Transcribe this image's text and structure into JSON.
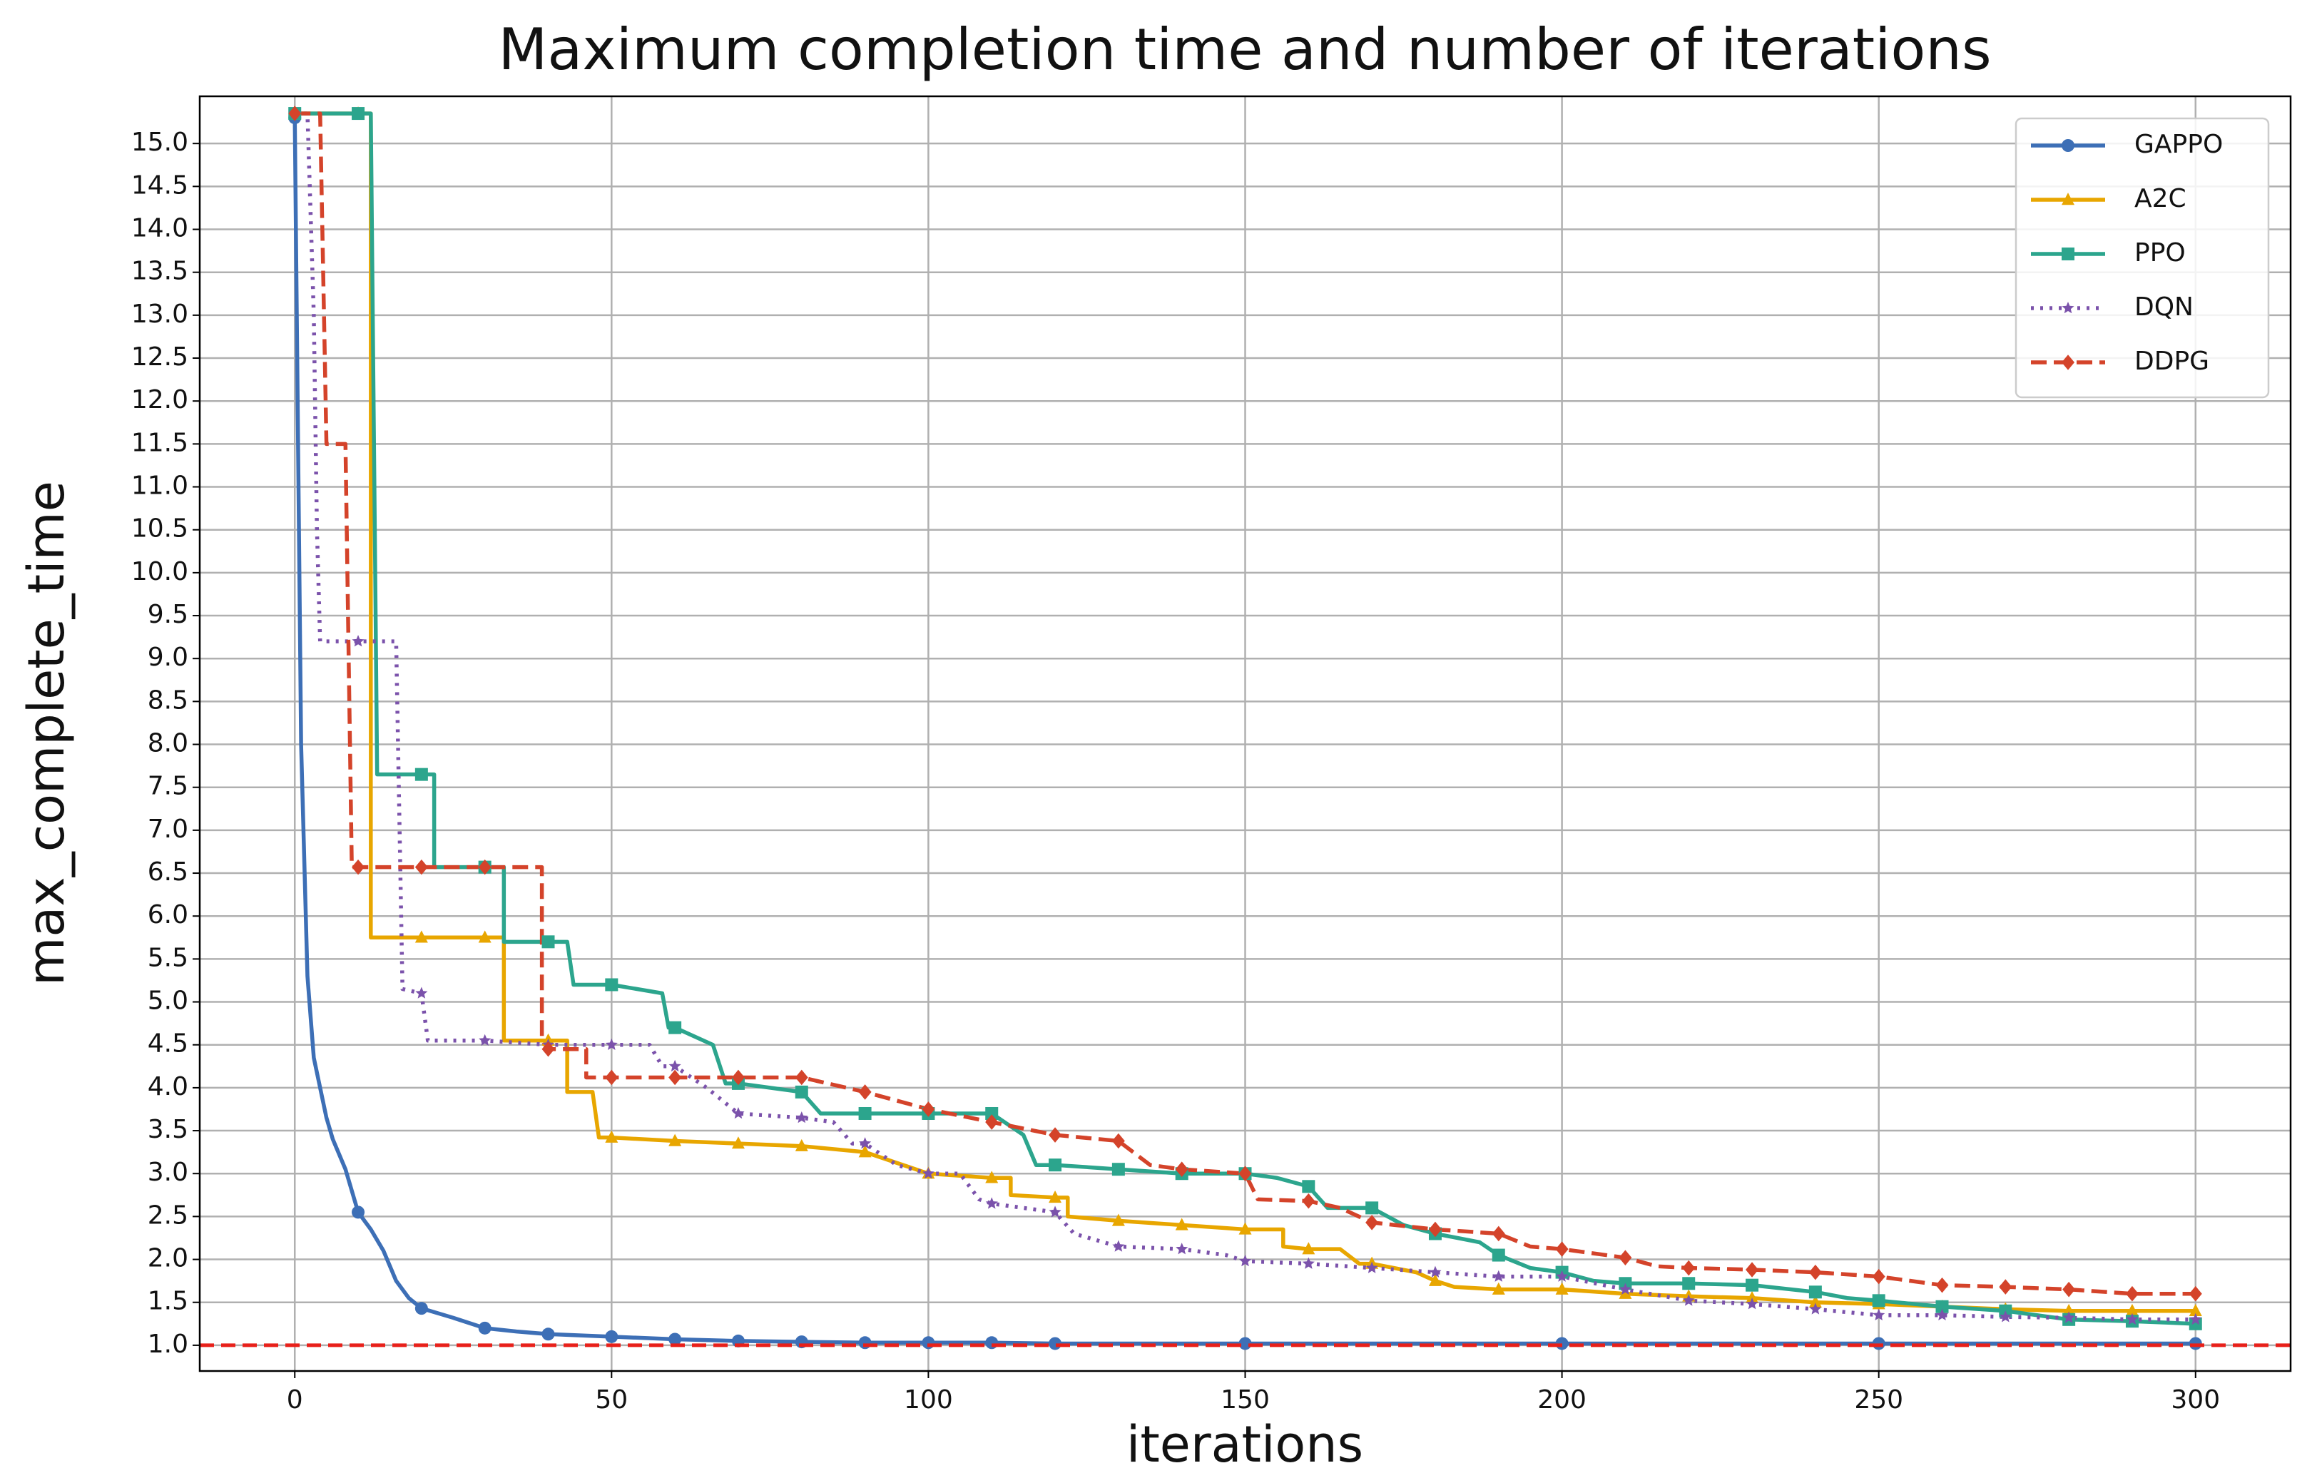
{
  "chart_data": {
    "type": "line",
    "title": "Maximum completion time and number of iterations",
    "x_label": "iterations",
    "y_label": "max_complete_time",
    "xlim": [
      -15,
      315
    ],
    "ylim": [
      0.7,
      15.55
    ],
    "xticks": [
      0,
      50,
      100,
      150,
      200,
      250,
      300
    ],
    "yticks": [
      {
        "value": 1,
        "label": "1.0"
      },
      1.5,
      {
        "value": 2,
        "label": "2.0"
      },
      2.5,
      {
        "value": 3,
        "label": "3.0"
      },
      3.5,
      {
        "value": 4,
        "label": "4.0"
      },
      4.5,
      {
        "value": 5,
        "label": "5.0"
      },
      5.5,
      {
        "value": 6,
        "label": "6.0"
      },
      6.5,
      {
        "value": 7,
        "label": "7.0"
      },
      7.5,
      {
        "value": 8,
        "label": "8.0"
      },
      8.5,
      {
        "value": 9,
        "label": "9.0"
      },
      9.5,
      {
        "value": 10,
        "label": "10.0"
      },
      10.5,
      {
        "value": 11,
        "label": "11.0"
      },
      11.5,
      {
        "value": 12,
        "label": "12.0"
      },
      12.5,
      {
        "value": 13,
        "label": "13.0"
      },
      13.5,
      {
        "value": 14,
        "label": "14.0"
      },
      14.5,
      {
        "value": 15,
        "label": "15.0"
      }
    ],
    "grid": true,
    "legend": "upper right",
    "marker_every": 10,
    "reference_line": {
      "value": 1,
      "color": "#e8201a"
    },
    "series": [
      {
        "name": "GAPPO",
        "color": "#3d6fb6",
        "marker": "circle",
        "dash": "solid",
        "x": [
          0,
          1,
          2,
          3,
          4,
          5,
          6,
          8,
          10,
          12,
          14,
          16,
          18,
          20,
          25,
          30,
          35,
          40,
          50,
          60,
          70,
          80,
          90,
          100,
          110,
          120,
          150,
          200,
          250,
          300
        ],
        "values": [
          15.3,
          8,
          5.3,
          4.35,
          4.0,
          3.65,
          3.4,
          3.05,
          2.55,
          2.35,
          2.1,
          1.75,
          1.55,
          1.43,
          1.32,
          1.2,
          1.16,
          1.13,
          1.1,
          1.07,
          1.05,
          1.04,
          1.03,
          1.03,
          1.03,
          1.02,
          1.02,
          1.02,
          1.02,
          1.02
        ]
      },
      {
        "name": "A2C",
        "color": "#e8a600",
        "marker": "triangle",
        "dash": "solid",
        "x": [
          0,
          10,
          12,
          12,
          20,
          30,
          33,
          33,
          40,
          43,
          43,
          47,
          48,
          50,
          60,
          70,
          80,
          90,
          100,
          110,
          113,
          113,
          120,
          122,
          122,
          130,
          140,
          150,
          156,
          156,
          160,
          165,
          168,
          170,
          177,
          180,
          183,
          190,
          200,
          210,
          220,
          230,
          240,
          250,
          260,
          270,
          280,
          290,
          300
        ],
        "values": [
          15.35,
          15.35,
          15.35,
          5.75,
          5.75,
          5.75,
          5.75,
          4.55,
          4.55,
          4.55,
          3.95,
          3.95,
          3.42,
          3.42,
          3.38,
          3.35,
          3.32,
          3.25,
          3.0,
          2.95,
          2.95,
          2.75,
          2.72,
          2.72,
          2.5,
          2.45,
          2.4,
          2.35,
          2.35,
          2.15,
          2.12,
          2.12,
          1.95,
          1.95,
          1.85,
          1.75,
          1.68,
          1.65,
          1.65,
          1.6,
          1.57,
          1.55,
          1.5,
          1.48,
          1.45,
          1.42,
          1.4,
          1.4,
          1.4
        ]
      },
      {
        "name": "PPO",
        "color": "#2ca58d",
        "marker": "square",
        "dash": "solid",
        "x": [
          0,
          10,
          12,
          13,
          20,
          22,
          22,
          30,
          33,
          33,
          40,
          43,
          44,
          50,
          58,
          59,
          60,
          66,
          68,
          70,
          80,
          83,
          90,
          100,
          110,
          115,
          117,
          120,
          130,
          140,
          150,
          155,
          160,
          163,
          170,
          175,
          180,
          187,
          190,
          195,
          200,
          205,
          210,
          220,
          230,
          240,
          245,
          250,
          260,
          270,
          280,
          290,
          300
        ],
        "values": [
          15.35,
          15.35,
          15.35,
          7.65,
          7.65,
          7.65,
          6.57,
          6.57,
          6.57,
          5.7,
          5.7,
          5.7,
          5.2,
          5.2,
          5.1,
          4.7,
          4.7,
          4.5,
          4.05,
          4.05,
          3.95,
          3.7,
          3.7,
          3.7,
          3.7,
          3.45,
          3.1,
          3.1,
          3.05,
          3.0,
          3.0,
          2.95,
          2.85,
          2.6,
          2.6,
          2.4,
          2.3,
          2.2,
          2.05,
          1.9,
          1.85,
          1.75,
          1.72,
          1.72,
          1.7,
          1.62,
          1.55,
          1.52,
          1.45,
          1.4,
          1.3,
          1.28,
          1.25
        ]
      },
      {
        "name": "DQN",
        "color": "#7b52ab",
        "marker": "star",
        "dash": "dotted",
        "x": [
          0,
          2,
          3,
          3.5,
          4,
          10,
          16,
          17,
          20,
          21,
          30,
          40,
          50,
          56,
          58,
          60,
          65,
          70,
          80,
          85,
          88,
          90,
          95,
          100,
          105,
          108,
          110,
          120,
          123,
          130,
          140,
          147,
          150,
          160,
          170,
          180,
          190,
          200,
          210,
          220,
          230,
          240,
          250,
          260,
          270,
          280,
          290,
          300
        ],
        "values": [
          15.35,
          15.35,
          13,
          10.5,
          9.2,
          9.2,
          9.2,
          5.15,
          5.1,
          4.55,
          4.55,
          4.5,
          4.5,
          4.5,
          4.25,
          4.25,
          4.0,
          3.7,
          3.65,
          3.6,
          3.35,
          3.35,
          3.1,
          3.0,
          3.0,
          2.7,
          2.65,
          2.55,
          2.3,
          2.15,
          2.12,
          2.05,
          1.98,
          1.95,
          1.9,
          1.85,
          1.8,
          1.8,
          1.65,
          1.52,
          1.48,
          1.42,
          1.35,
          1.35,
          1.33,
          1.32,
          1.3,
          1.3
        ]
      },
      {
        "name": "DDPG",
        "color": "#d4432a",
        "marker": "diamond",
        "dash": "dashed",
        "x": [
          0,
          4,
          5,
          8,
          9,
          10,
          20,
          30,
          39,
          39,
          40,
          46,
          46,
          50,
          60,
          70,
          80,
          90,
          100,
          110,
          120,
          130,
          135,
          140,
          150,
          152,
          160,
          165,
          170,
          180,
          190,
          195,
          200,
          210,
          215,
          220,
          230,
          240,
          250,
          260,
          270,
          280,
          290,
          300
        ],
        "values": [
          15.35,
          15.35,
          11.5,
          11.5,
          6.57,
          6.57,
          6.57,
          6.57,
          6.57,
          4.55,
          4.45,
          4.45,
          4.12,
          4.12,
          4.12,
          4.12,
          4.12,
          3.95,
          3.75,
          3.6,
          3.45,
          3.38,
          3.1,
          3.05,
          3.0,
          2.7,
          2.68,
          2.6,
          2.43,
          2.35,
          2.3,
          2.15,
          2.12,
          2.02,
          1.92,
          1.9,
          1.88,
          1.85,
          1.8,
          1.7,
          1.68,
          1.65,
          1.6,
          1.6
        ]
      }
    ]
  }
}
